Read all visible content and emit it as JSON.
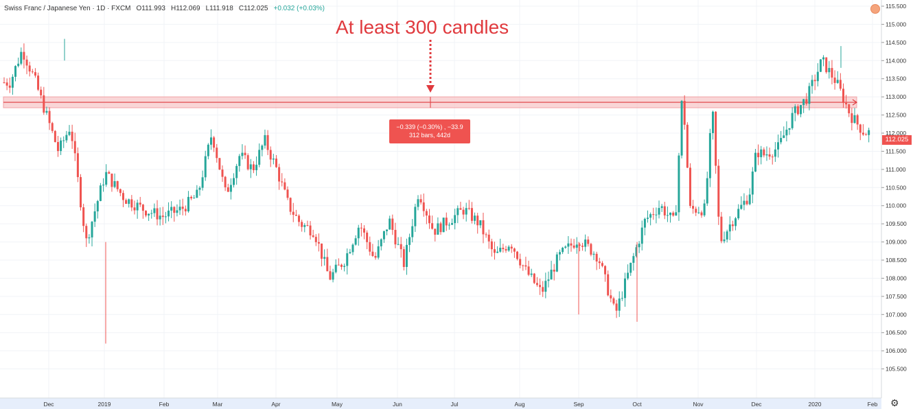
{
  "header": {
    "symbol": "Swiss Franc / Japanese Yen · 1D · FXCM",
    "open": "O111.993",
    "high": "H112.069",
    "low": "L111.918",
    "close": "C112.025",
    "change": "+0.032 (+0.03%)"
  },
  "annotation": {
    "text": "At least 300 candles"
  },
  "measure": {
    "line1": "−0.339 (−0.30%) , −33.9",
    "line2": "312 bars, 442d"
  },
  "last_price": "112.025",
  "colors": {
    "up": "#26a69a",
    "down": "#ef5350",
    "zone": "#f7c5c6",
    "annotation": "#e03a3e"
  },
  "icons": {
    "alert": "alert-dot-icon",
    "settings": "gear-icon"
  },
  "chart_data": {
    "type": "candlestick",
    "title": "Swiss Franc / Japanese Yen · 1D · FXCM",
    "yaxis": {
      "range": [
        105.35,
        115.6
      ],
      "ticks": [
        "115.500",
        "115.000",
        "114.500",
        "114.000",
        "113.500",
        "113.000",
        "112.500",
        "112.000",
        "111.500",
        "111.000",
        "110.500",
        "110.000",
        "109.500",
        "109.000",
        "108.500",
        "108.000",
        "107.500",
        "107.000",
        "106.500",
        "106.000",
        "105.500"
      ]
    },
    "xaxis": {
      "labels": [
        "Dec",
        "2019",
        "Feb",
        "Mar",
        "Apr",
        "May",
        "Jun",
        "Jul",
        "Aug",
        "Sep",
        "Oct",
        "Nov",
        "Dec",
        "2020",
        "Feb"
      ]
    },
    "zone": {
      "start_label": "Nov",
      "end_label": "2020",
      "high": 113.0,
      "low": 112.7,
      "line": 112.85
    },
    "close_path": [
      [
        "Nov",
        113.2
      ],
      [
        "Nov",
        112.7
      ],
      [
        "Dec",
        113.4
      ],
      [
        "Dec",
        114.3
      ],
      [
        "Dec",
        113.5
      ],
      [
        "Dec",
        112.5
      ],
      [
        "Dec",
        111.5
      ],
      [
        "Dec",
        112.2
      ],
      [
        "Dec",
        111.5
      ],
      [
        "2019",
        109.0
      ],
      [
        "2019",
        110.9
      ],
      [
        "2019",
        110.2
      ],
      [
        "Feb",
        109.9
      ],
      [
        "Feb",
        109.7
      ],
      [
        "Feb",
        109.9
      ],
      [
        "Mar",
        110.3
      ],
      [
        "Mar",
        112.0
      ],
      [
        "Mar",
        110.3
      ],
      [
        "Mar",
        111.4
      ],
      [
        "Apr",
        111.0
      ],
      [
        "Apr",
        111.8
      ],
      [
        "Apr",
        111.0
      ],
      [
        "Apr",
        110.0
      ],
      [
        "Apr",
        109.5
      ],
      [
        "May",
        109.3
      ],
      [
        "May",
        108.0
      ],
      [
        "May",
        108.5
      ],
      [
        "May",
        109.5
      ],
      [
        "Jun",
        108.5
      ],
      [
        "Jun",
        109.6
      ],
      [
        "Jun",
        108.4
      ],
      [
        "Jun",
        110.4
      ],
      [
        "Jul",
        109.3
      ],
      [
        "Jul",
        109.6
      ],
      [
        "Jul",
        109.9
      ],
      [
        "Jul",
        109.5
      ],
      [
        "Aug",
        108.6
      ],
      [
        "Aug",
        109.0
      ],
      [
        "Aug",
        108.2
      ],
      [
        "Aug",
        107.6
      ],
      [
        "Sep",
        108.6
      ],
      [
        "Sep",
        109.1
      ],
      [
        "Sep",
        108.6
      ],
      [
        "Oct",
        107.0
      ],
      [
        "Oct",
        108.3
      ],
      [
        "Oct",
        109.6
      ],
      [
        "Oct",
        110.0
      ],
      [
        "Nov",
        109.5
      ],
      [
        "Nov",
        109.9
      ],
      [
        "Nov",
        109.9
      ],
      [
        "Nov",
        109.0
      ],
      [
        "Dec",
        109.7
      ],
      [
        "Dec",
        110.3
      ],
      [
        "Dec",
        111.4
      ],
      [
        "Dec",
        111.6
      ],
      [
        "2020",
        112.5
      ],
      [
        "2020",
        113.0
      ],
      [
        "2020",
        114.0
      ],
      [
        "2020",
        113.4
      ],
      [
        "Feb",
        112.5
      ],
      [
        "Feb",
        112.02
      ]
    ],
    "last_close": 112.025,
    "notable_lows": [
      {
        "label": "2019",
        "value": 106.2
      },
      {
        "label": "Sep",
        "value": 107.0
      },
      {
        "label": "Oct",
        "value": 106.8
      }
    ],
    "notable_highs": [
      {
        "label": "Dec",
        "value": 114.6
      },
      {
        "label": "2020",
        "value": 114.4
      }
    ],
    "grid": true,
    "legend": "top-left"
  }
}
